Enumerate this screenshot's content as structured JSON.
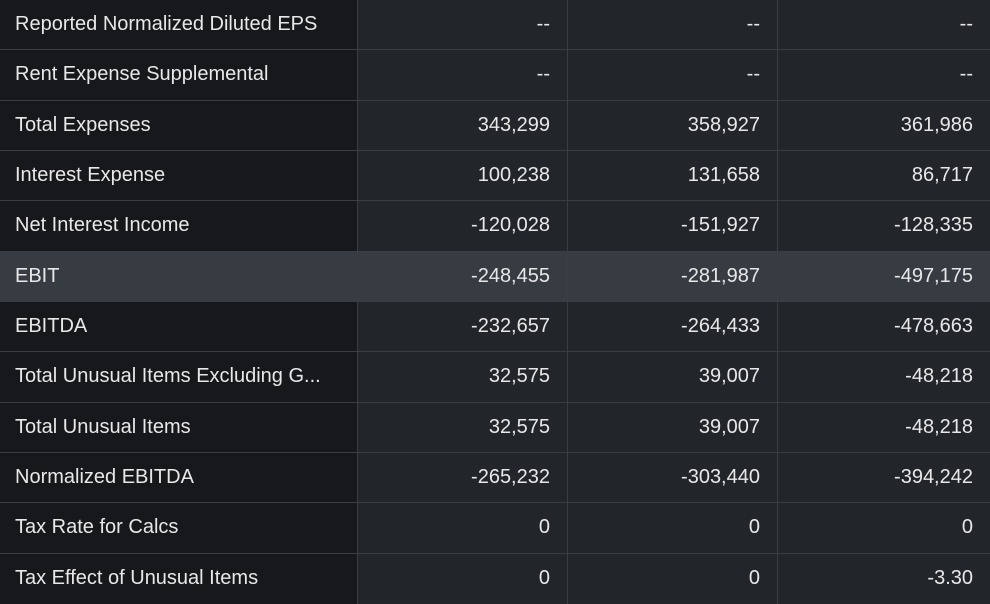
{
  "rows": [
    {
      "label": "Reported Normalized Diluted EPS",
      "values": [
        "--",
        "--",
        "--"
      ],
      "highlighted": false
    },
    {
      "label": "Rent Expense Supplemental",
      "values": [
        "--",
        "--",
        "--"
      ],
      "highlighted": false
    },
    {
      "label": "Total Expenses",
      "values": [
        "343,299",
        "358,927",
        "361,986"
      ],
      "highlighted": false
    },
    {
      "label": "Interest Expense",
      "values": [
        "100,238",
        "131,658",
        "86,717"
      ],
      "highlighted": false
    },
    {
      "label": "Net Interest Income",
      "values": [
        "-120,028",
        "-151,927",
        "-128,335"
      ],
      "highlighted": false
    },
    {
      "label": "EBIT",
      "values": [
        "-248,455",
        "-281,987",
        "-497,175"
      ],
      "highlighted": true
    },
    {
      "label": "EBITDA",
      "values": [
        "-232,657",
        "-264,433",
        "-478,663"
      ],
      "highlighted": false
    },
    {
      "label": "Total Unusual Items Excluding G...",
      "values": [
        "32,575",
        "39,007",
        "-48,218"
      ],
      "highlighted": false
    },
    {
      "label": "Total Unusual Items",
      "values": [
        "32,575",
        "39,007",
        "-48,218"
      ],
      "highlighted": false
    },
    {
      "label": "Normalized EBITDA",
      "values": [
        "-265,232",
        "-303,440",
        "-394,242"
      ],
      "highlighted": false
    },
    {
      "label": "Tax Rate for Calcs",
      "values": [
        "0",
        "0",
        "0"
      ],
      "highlighted": false
    },
    {
      "label": "Tax Effect of Unusual Items",
      "values": [
        "0",
        "0",
        "-3.30"
      ],
      "highlighted": false
    }
  ]
}
